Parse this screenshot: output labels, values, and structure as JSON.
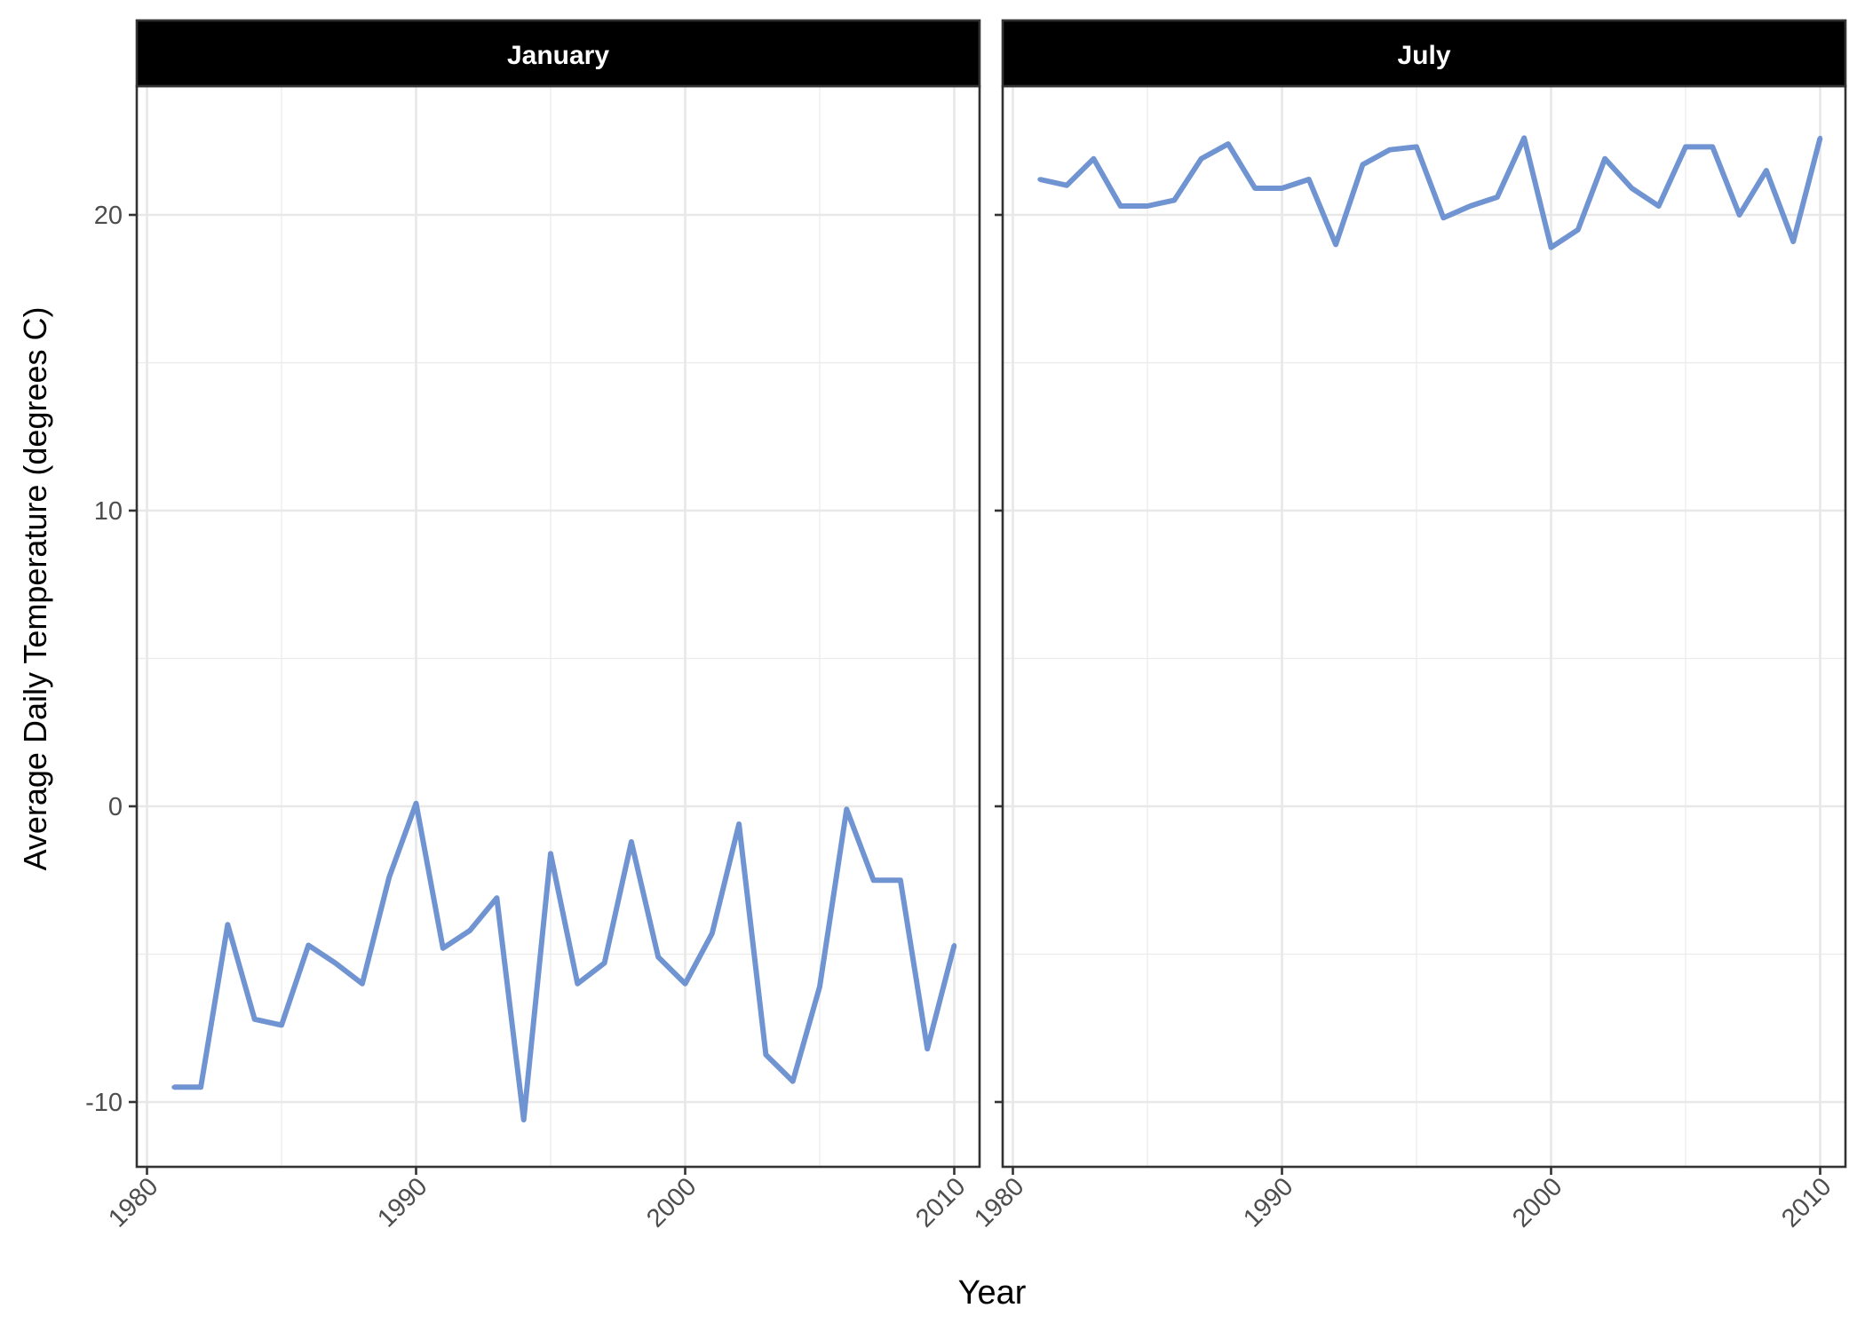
{
  "chart_data": {
    "type": "line",
    "xlabel": "Year",
    "ylabel": "Average Daily Temperature (degrees C)",
    "xlim": [
      1980,
      2010
    ],
    "ylim": [
      -10,
      20
    ],
    "x_ticks": [
      1980,
      1990,
      2000,
      2010
    ],
    "x_tick_labels": [
      "1980",
      "1990",
      "2000",
      "2010"
    ],
    "y_ticks": [
      -10,
      0,
      10,
      20
    ],
    "y_tick_labels": [
      "-10",
      "0",
      "10",
      "20"
    ],
    "grid": true,
    "line_color": "#7094d1",
    "strip_color": "#000000",
    "facets": [
      {
        "label": "January",
        "x": [
          1981,
          1982,
          1983,
          1984,
          1985,
          1986,
          1987,
          1988,
          1989,
          1990,
          1991,
          1992,
          1993,
          1994,
          1995,
          1996,
          1997,
          1998,
          1999,
          2000,
          2001,
          2002,
          2003,
          2004,
          2005,
          2006,
          2007,
          2008,
          2009,
          2010
        ],
        "values": [
          -9.5,
          -9.5,
          -4.0,
          -7.2,
          -7.4,
          -4.7,
          -5.3,
          -6.0,
          -2.4,
          0.1,
          -4.8,
          -4.2,
          -3.1,
          -10.6,
          -1.6,
          -6.0,
          -5.3,
          -1.2,
          -5.1,
          -6.0,
          -4.3,
          -0.6,
          -8.4,
          -9.3,
          -6.1,
          -0.1,
          -2.5,
          -2.5,
          -8.2,
          -4.7
        ]
      },
      {
        "label": "July",
        "x": [
          1981,
          1982,
          1983,
          1984,
          1985,
          1986,
          1987,
          1988,
          1989,
          1990,
          1991,
          1992,
          1993,
          1994,
          1995,
          1996,
          1997,
          1998,
          1999,
          2000,
          2001,
          2002,
          2003,
          2004,
          2005,
          2006,
          2007,
          2008,
          2009,
          2010
        ],
        "values": [
          21.2,
          21.0,
          21.9,
          20.3,
          20.3,
          20.5,
          21.9,
          22.4,
          20.9,
          20.9,
          21.2,
          19.0,
          21.7,
          22.2,
          22.3,
          19.9,
          20.3,
          20.6,
          22.6,
          18.9,
          19.5,
          21.9,
          20.9,
          20.3,
          22.3,
          22.3,
          20.0,
          21.5,
          19.1,
          22.6
        ]
      }
    ]
  }
}
